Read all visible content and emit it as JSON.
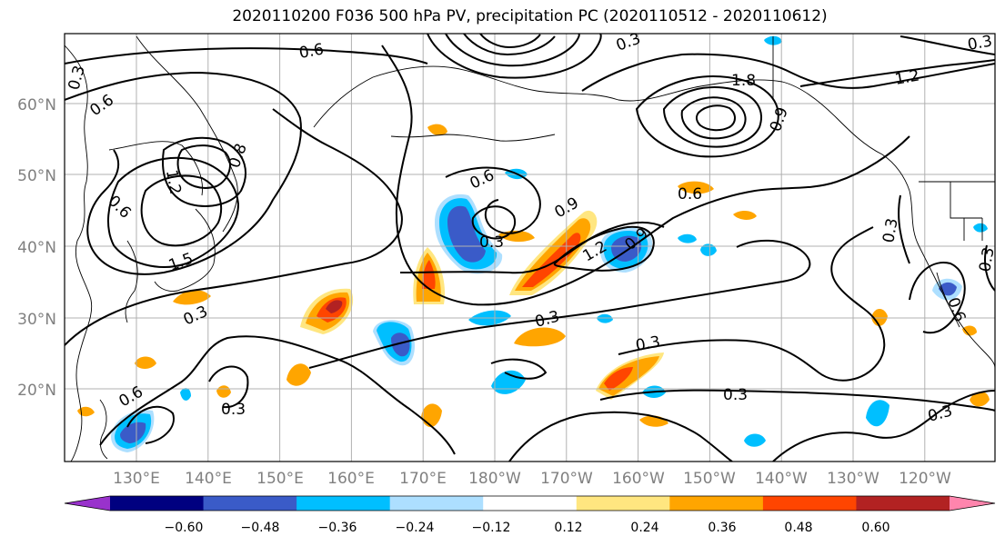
{
  "title": "2020110200 F036 500 hPa PV, precipitation PC (2020110512 - 2020110612)",
  "lat_labels": [
    "60°N",
    "50°N",
    "40°N",
    "30°N",
    "20°N"
  ],
  "lon_labels": [
    "130°E",
    "140°E",
    "150°E",
    "160°E",
    "170°E",
    "180°W",
    "170°W",
    "160°W",
    "150°W",
    "140°W",
    "130°W",
    "120°W"
  ],
  "colorbar": {
    "colors": [
      "#9932CC",
      "#000080",
      "#3A5BC8",
      "#00BFFF",
      "#ADDFFF",
      "#FFFFFF",
      "#FFE680",
      "#FFA500",
      "#FF4500",
      "#B22222",
      "#FF85AD"
    ],
    "tick_labels": [
      "−0.60",
      "−0.48",
      "−0.36",
      "−0.24",
      "−0.12",
      "0.12",
      "0.24",
      "0.36",
      "0.48",
      "0.60"
    ]
  },
  "contour_labels": [
    "0.6",
    "0.3",
    "0.6",
    "0.3",
    "1.2",
    "1.2",
    "1.8",
    "1.5",
    "0.9",
    "0.8",
    "0.6",
    "0.3",
    "0.6",
    "0.9",
    "1.2",
    "0.9",
    "0.3",
    "0.6",
    "0.3",
    "0.3",
    "0.3",
    "0.3",
    "0.3",
    "0.6",
    "0.3",
    "0.6",
    "0.3",
    "0.3"
  ]
}
